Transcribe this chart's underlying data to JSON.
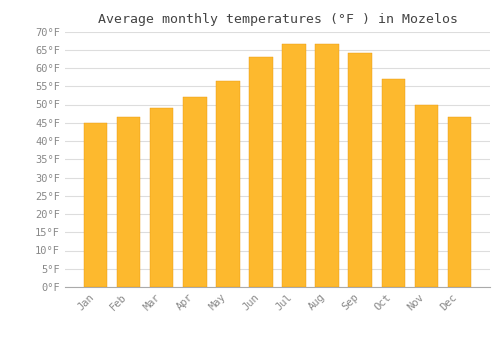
{
  "title": "Average monthly temperatures (°F ) in Mozelos",
  "months": [
    "Jan",
    "Feb",
    "Mar",
    "Apr",
    "May",
    "Jun",
    "Jul",
    "Aug",
    "Sep",
    "Oct",
    "Nov",
    "Dec"
  ],
  "values": [
    45,
    46.5,
    49,
    52,
    56.5,
    63,
    66.5,
    66.5,
    64,
    57,
    50,
    46.5
  ],
  "bar_color": "#FDB92E",
  "bar_color_top": "#F5A800",
  "bar_edge_color": "#E8960A",
  "background_color": "#FFFFFF",
  "plot_bg_color": "#FFFFFF",
  "grid_color": "#DDDDDD",
  "text_color": "#888888",
  "title_color": "#444444",
  "ylim": [
    0,
    70
  ],
  "ytick_step": 5,
  "title_fontsize": 9.5,
  "tick_fontsize": 7.5,
  "font_family": "monospace"
}
